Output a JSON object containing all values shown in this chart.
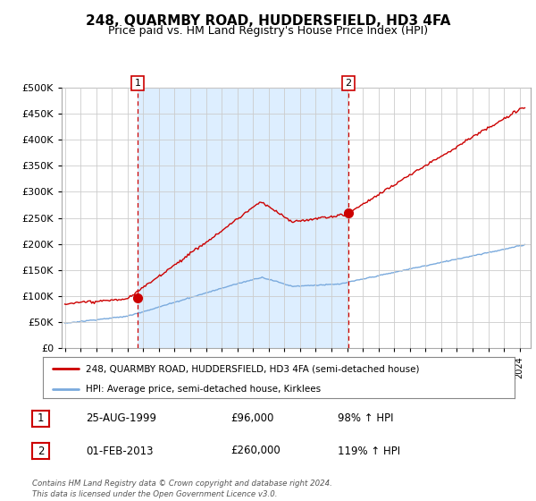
{
  "title": "248, QUARMBY ROAD, HUDDERSFIELD, HD3 4FA",
  "subtitle": "Price paid vs. HM Land Registry's House Price Index (HPI)",
  "title_fontsize": 11,
  "subtitle_fontsize": 9,
  "background_color": "#ffffff",
  "plot_bg_color": "#ffffff",
  "grid_color": "#cccccc",
  "shade_color": "#ddeeff",
  "legend_label_red": "248, QUARMBY ROAD, HUDDERSFIELD, HD3 4FA (semi-detached house)",
  "legend_label_blue": "HPI: Average price, semi-detached house, Kirklees",
  "red_color": "#cc0000",
  "blue_color": "#7aaadd",
  "marker1_x": 1999.65,
  "marker1_y": 96000,
  "marker1_label": "1",
  "marker2_x": 2013.08,
  "marker2_y": 260000,
  "marker2_label": "2",
  "table_rows": [
    {
      "num": "1",
      "date": "25-AUG-1999",
      "price": "£96,000",
      "hpi": "98% ↑ HPI"
    },
    {
      "num": "2",
      "date": "01-FEB-2013",
      "price": "£260,000",
      "hpi": "119% ↑ HPI"
    }
  ],
  "footer": "Contains HM Land Registry data © Crown copyright and database right 2024.\nThis data is licensed under the Open Government Licence v3.0.",
  "ylim": [
    0,
    500000
  ],
  "yticks": [
    0,
    50000,
    100000,
    150000,
    200000,
    250000,
    300000,
    350000,
    400000,
    450000,
    500000
  ],
  "xlim_start": 1994.8,
  "xlim_end": 2024.7
}
